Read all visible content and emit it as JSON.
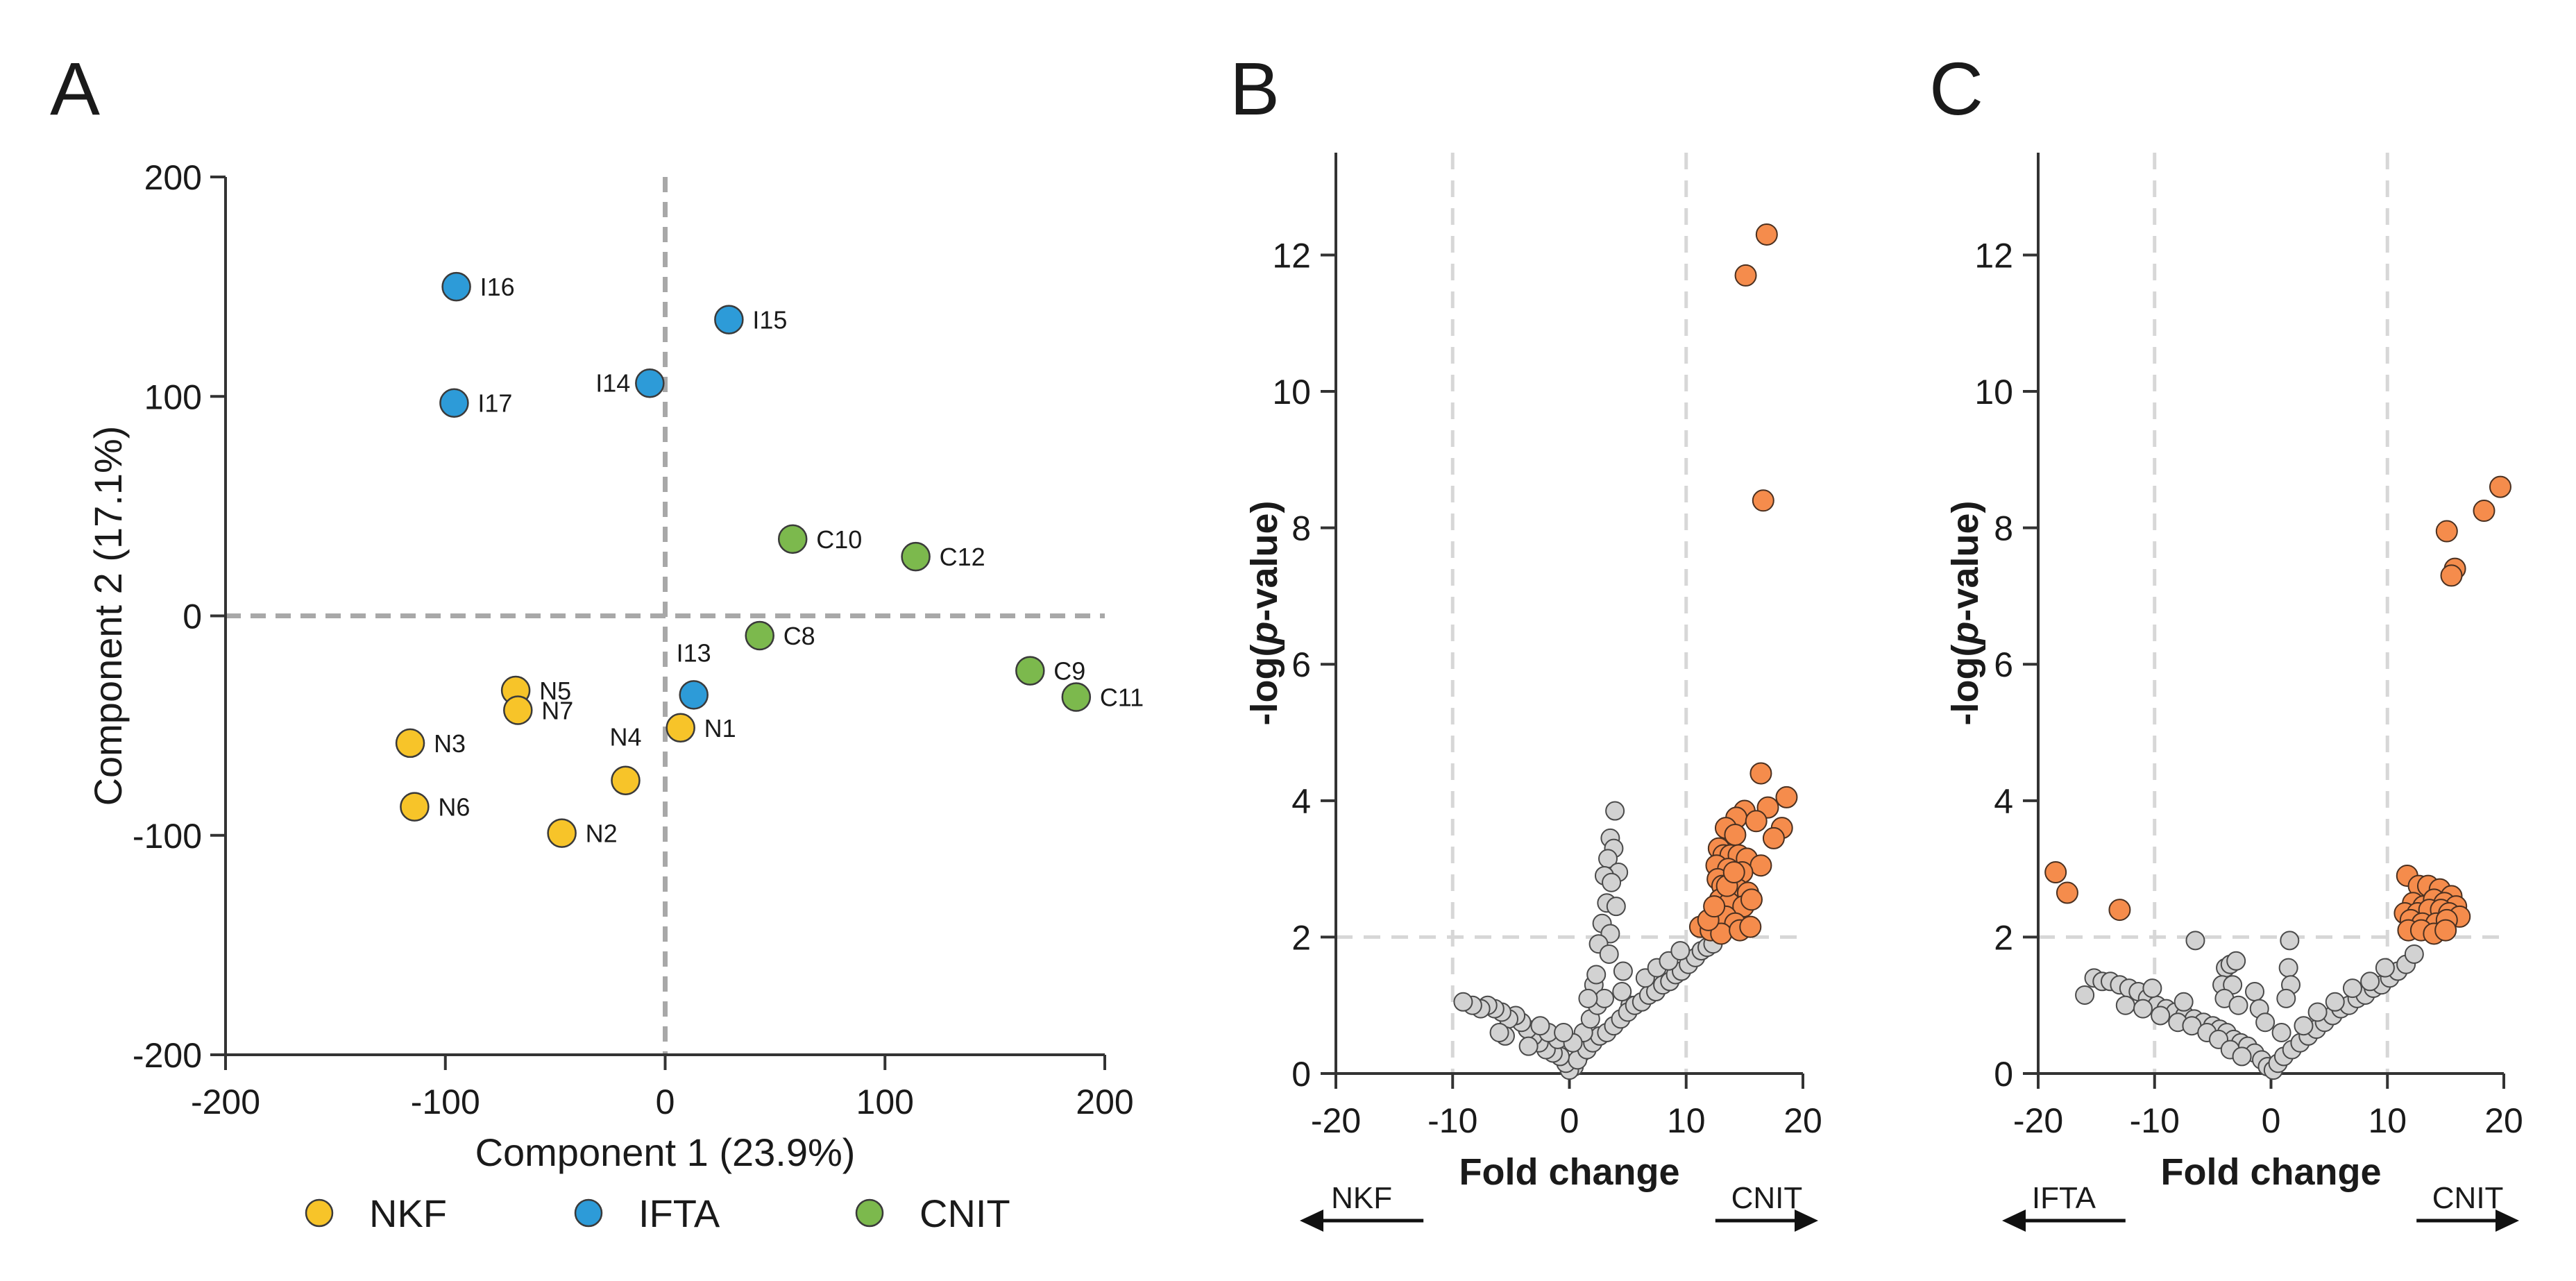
{
  "colors": {
    "NKF": "#F7C429",
    "IFTA": "#2D9BD8",
    "CNIT": "#7CB94D",
    "significant": "#F58C4C",
    "nonsignificant": "#D2D2D2",
    "reference_line": "#A8A8A8",
    "threshold_line": "#D7D7D7"
  },
  "legend": [
    {
      "label": "NKF",
      "group": "NKF"
    },
    {
      "label": "IFTA",
      "group": "IFTA"
    },
    {
      "label": "CNIT",
      "group": "CNIT"
    }
  ],
  "chart_data": [
    {
      "panel": "A",
      "type": "scatter",
      "xlabel": "Component 1 (23.9%)",
      "ylabel": "Component 2 (17.1%)",
      "xlim": [
        -200,
        200
      ],
      "ylim": [
        -200,
        200
      ],
      "xticks": [
        -200,
        -100,
        0,
        100,
        200
      ],
      "yticks": [
        -200,
        -100,
        0,
        100,
        200
      ],
      "reference_lines": {
        "x": 0,
        "y": 0
      },
      "points": [
        {
          "label": "I16",
          "group": "IFTA",
          "x": -95,
          "y": 150
        },
        {
          "label": "I15",
          "group": "IFTA",
          "x": 29,
          "y": 135
        },
        {
          "label": "I14",
          "group": "IFTA",
          "x": -7,
          "y": 106
        },
        {
          "label": "I17",
          "group": "IFTA",
          "x": -96,
          "y": 97
        },
        {
          "label": "I13",
          "group": "IFTA",
          "x": 13,
          "y": -36
        },
        {
          "label": "C10",
          "group": "CNIT",
          "x": 58,
          "y": 35
        },
        {
          "label": "C12",
          "group": "CNIT",
          "x": 114,
          "y": 27
        },
        {
          "label": "C8",
          "group": "CNIT",
          "x": 43,
          "y": -9
        },
        {
          "label": "C9",
          "group": "CNIT",
          "x": 166,
          "y": -25
        },
        {
          "label": "C11",
          "group": "CNIT",
          "x": 187,
          "y": -37
        },
        {
          "label": "N5",
          "group": "NKF",
          "x": -68,
          "y": -34
        },
        {
          "label": "N7",
          "group": "NKF",
          "x": -67,
          "y": -43
        },
        {
          "label": "N1",
          "group": "NKF",
          "x": 7,
          "y": -51
        },
        {
          "label": "N3",
          "group": "NKF",
          "x": -116,
          "y": -58
        },
        {
          "label": "N4",
          "group": "NKF",
          "x": -18,
          "y": -75
        },
        {
          "label": "N6",
          "group": "NKF",
          "x": -114,
          "y": -87
        },
        {
          "label": "N2",
          "group": "NKF",
          "x": -47,
          "y": -99
        }
      ]
    },
    {
      "panel": "B",
      "type": "scatter",
      "subtype": "volcano",
      "xlabel": "Fold change",
      "ylabel_prefix": "-log(",
      "ylabel_italic": "p",
      "ylabel_suffix": "-value)",
      "xlim": [
        -20,
        20
      ],
      "ylim": [
        0,
        13.5
      ],
      "xticks": [
        -20,
        -10,
        0,
        10,
        20
      ],
      "yticks": [
        0,
        2,
        4,
        6,
        8,
        10,
        12
      ],
      "thresholds": {
        "x": [
          -10,
          10
        ],
        "y": 2
      },
      "left_direction": "NKF",
      "right_direction": "CNIT",
      "significant_points": [
        [
          16.9,
          12.3
        ],
        [
          15.1,
          11.7
        ],
        [
          16.6,
          8.4
        ],
        [
          16.4,
          4.4
        ],
        [
          18.6,
          4.05
        ],
        [
          17.0,
          3.9
        ],
        [
          15.0,
          3.85
        ],
        [
          14.3,
          3.75
        ],
        [
          16.0,
          3.7
        ],
        [
          18.2,
          3.6
        ],
        [
          13.4,
          3.6
        ],
        [
          17.5,
          3.45
        ],
        [
          14.2,
          3.5
        ],
        [
          12.8,
          3.3
        ],
        [
          13.2,
          3.2
        ],
        [
          13.8,
          3.2
        ],
        [
          14.5,
          3.2
        ],
        [
          15.2,
          3.15
        ],
        [
          16.4,
          3.05
        ],
        [
          12.6,
          3.05
        ],
        [
          13.6,
          3.0
        ],
        [
          14.8,
          2.95
        ],
        [
          12.7,
          2.85
        ],
        [
          13.1,
          2.75
        ],
        [
          14.4,
          2.7
        ],
        [
          15.3,
          2.65
        ],
        [
          12.9,
          2.55
        ],
        [
          13.7,
          2.5
        ],
        [
          14.9,
          2.45
        ],
        [
          12.7,
          2.35
        ],
        [
          13.4,
          2.3
        ],
        [
          14.2,
          2.2
        ],
        [
          11.2,
          2.15
        ],
        [
          12.1,
          2.1
        ],
        [
          13.0,
          2.05
        ],
        [
          14.6,
          2.1
        ],
        [
          15.5,
          2.15
        ],
        [
          11.9,
          2.25
        ],
        [
          12.4,
          2.45
        ],
        [
          13.5,
          2.75
        ],
        [
          14.1,
          2.95
        ],
        [
          15.6,
          2.55
        ]
      ],
      "nonsignificant_points": [
        [
          3.9,
          3.85
        ],
        [
          3.5,
          3.45
        ],
        [
          3.8,
          3.3
        ],
        [
          3.3,
          3.15
        ],
        [
          4.2,
          2.95
        ],
        [
          3.0,
          2.9
        ],
        [
          3.6,
          2.8
        ],
        [
          3.2,
          2.5
        ],
        [
          4.0,
          2.45
        ],
        [
          2.8,
          2.2
        ],
        [
          3.5,
          2.05
        ],
        [
          2.5,
          1.9
        ],
        [
          3.4,
          1.75
        ],
        [
          4.6,
          1.5
        ],
        [
          2.1,
          1.3
        ],
        [
          5.2,
          1.0
        ],
        [
          1.0,
          0.3
        ],
        [
          0.4,
          0.1
        ],
        [
          0.0,
          0.05
        ],
        [
          -0.3,
          0.15
        ],
        [
          0.7,
          0.2
        ],
        [
          -0.8,
          0.25
        ],
        [
          1.5,
          0.35
        ],
        [
          -1.4,
          0.3
        ],
        [
          2.0,
          0.45
        ],
        [
          -2.0,
          0.35
        ],
        [
          2.6,
          0.55
        ],
        [
          -2.6,
          0.45
        ],
        [
          3.2,
          0.6
        ],
        [
          -3.1,
          0.55
        ],
        [
          3.8,
          0.7
        ],
        [
          -3.6,
          0.65
        ],
        [
          4.4,
          0.8
        ],
        [
          -4.1,
          0.75
        ],
        [
          5.0,
          0.9
        ],
        [
          -4.6,
          0.85
        ],
        [
          5.6,
          1.0
        ],
        [
          -5.2,
          0.8
        ],
        [
          6.2,
          1.05
        ],
        [
          -5.8,
          0.9
        ],
        [
          6.8,
          1.15
        ],
        [
          -6.4,
          0.95
        ],
        [
          7.4,
          1.2
        ],
        [
          -7.0,
          1.0
        ],
        [
          8.0,
          1.3
        ],
        [
          -7.6,
          0.95
        ],
        [
          8.6,
          1.35
        ],
        [
          -8.3,
          1.0
        ],
        [
          9.1,
          1.45
        ],
        [
          -9.1,
          1.05
        ],
        [
          9.6,
          1.5
        ],
        [
          10.2,
          1.6
        ],
        [
          10.8,
          1.7
        ],
        [
          11.3,
          1.8
        ],
        [
          11.8,
          1.85
        ],
        [
          12.3,
          1.9
        ],
        [
          1.2,
          0.6
        ],
        [
          1.8,
          0.8
        ],
        [
          2.4,
          1.0
        ],
        [
          3.0,
          1.1
        ],
        [
          6.5,
          1.4
        ],
        [
          7.5,
          1.55
        ],
        [
          8.5,
          1.65
        ],
        [
          9.5,
          1.8
        ],
        [
          4.5,
          1.2
        ],
        [
          -1.0,
          0.5
        ],
        [
          -1.8,
          0.6
        ],
        [
          -2.5,
          0.7
        ],
        [
          -5.5,
          0.55
        ],
        [
          -6.0,
          0.6
        ],
        [
          -3.5,
          0.4
        ],
        [
          0.3,
          0.45
        ],
        [
          1.6,
          1.1
        ],
        [
          2.3,
          1.45
        ],
        [
          -0.5,
          0.6
        ]
      ]
    },
    {
      "panel": "C",
      "type": "scatter",
      "subtype": "volcano",
      "xlabel": "Fold change",
      "ylabel_prefix": "-log(",
      "ylabel_italic": "p",
      "ylabel_suffix": "-value)",
      "xlim": [
        -20,
        20
      ],
      "ylim": [
        0,
        13.5
      ],
      "xticks": [
        -20,
        -10,
        0,
        10,
        20
      ],
      "yticks": [
        0,
        2,
        4,
        6,
        8,
        10,
        12
      ],
      "thresholds": {
        "x": [
          -10,
          10
        ],
        "y": 2
      },
      "left_direction": "IFTA",
      "right_direction": "CNIT",
      "significant_points": [
        [
          19.7,
          8.6
        ],
        [
          18.3,
          8.25
        ],
        [
          15.1,
          7.95
        ],
        [
          15.8,
          7.4
        ],
        [
          15.5,
          7.3
        ],
        [
          -18.5,
          2.95
        ],
        [
          -17.5,
          2.65
        ],
        [
          -13.0,
          2.4
        ],
        [
          11.7,
          2.9
        ],
        [
          12.7,
          2.75
        ],
        [
          13.5,
          2.75
        ],
        [
          14.5,
          2.7
        ],
        [
          15.5,
          2.6
        ],
        [
          12.2,
          2.5
        ],
        [
          13.1,
          2.45
        ],
        [
          14.0,
          2.55
        ],
        [
          14.9,
          2.5
        ],
        [
          15.9,
          2.45
        ],
        [
          11.5,
          2.35
        ],
        [
          12.6,
          2.35
        ],
        [
          13.6,
          2.4
        ],
        [
          14.6,
          2.4
        ],
        [
          15.3,
          2.35
        ],
        [
          16.2,
          2.3
        ],
        [
          12.0,
          2.25
        ],
        [
          13.0,
          2.2
        ],
        [
          14.2,
          2.2
        ],
        [
          15.1,
          2.25
        ],
        [
          11.8,
          2.1
        ],
        [
          12.9,
          2.1
        ],
        [
          14.0,
          2.05
        ],
        [
          15.0,
          2.1
        ]
      ],
      "nonsignificant_points": [
        [
          -6.5,
          1.95
        ],
        [
          -3.9,
          1.55
        ],
        [
          -3.5,
          1.6
        ],
        [
          -3.0,
          1.65
        ],
        [
          -4.2,
          1.3
        ],
        [
          -3.3,
          1.3
        ],
        [
          -4.0,
          1.1
        ],
        [
          -2.8,
          1.0
        ],
        [
          1.6,
          1.95
        ],
        [
          1.5,
          1.55
        ],
        [
          1.7,
          1.3
        ],
        [
          1.3,
          1.1
        ],
        [
          -1.4,
          1.2
        ],
        [
          -1.0,
          0.95
        ],
        [
          -15.2,
          1.4
        ],
        [
          -14.5,
          1.35
        ],
        [
          -13.8,
          1.35
        ],
        [
          -13.0,
          1.3
        ],
        [
          -12.2,
          1.25
        ],
        [
          -11.4,
          1.2
        ],
        [
          -10.6,
          1.1
        ],
        [
          -9.8,
          1.0
        ],
        [
          -9.0,
          0.95
        ],
        [
          -8.2,
          0.9
        ],
        [
          -7.4,
          0.85
        ],
        [
          -6.6,
          0.8
        ],
        [
          -5.8,
          0.75
        ],
        [
          -5.0,
          0.7
        ],
        [
          -4.4,
          0.65
        ],
        [
          -3.8,
          0.6
        ],
        [
          -3.2,
          0.5
        ],
        [
          -2.6,
          0.45
        ],
        [
          -2.0,
          0.4
        ],
        [
          -1.4,
          0.3
        ],
        [
          -0.8,
          0.2
        ],
        [
          -0.3,
          0.1
        ],
        [
          0.2,
          0.05
        ],
        [
          0.6,
          0.15
        ],
        [
          1.1,
          0.25
        ],
        [
          1.8,
          0.35
        ],
        [
          2.5,
          0.45
        ],
        [
          3.2,
          0.55
        ],
        [
          3.9,
          0.65
        ],
        [
          4.6,
          0.75
        ],
        [
          5.3,
          0.85
        ],
        [
          6.0,
          0.95
        ],
        [
          6.7,
          1.0
        ],
        [
          7.4,
          1.1
        ],
        [
          8.1,
          1.15
        ],
        [
          8.8,
          1.25
        ],
        [
          9.5,
          1.3
        ],
        [
          10.2,
          1.4
        ],
        [
          10.9,
          1.5
        ],
        [
          11.6,
          1.6
        ],
        [
          12.3,
          1.75
        ],
        [
          -16.0,
          1.15
        ],
        [
          -12.5,
          1.0
        ],
        [
          -11.0,
          0.95
        ],
        [
          -9.5,
          0.85
        ],
        [
          -8.0,
          0.75
        ],
        [
          -6.8,
          0.7
        ],
        [
          -5.5,
          0.6
        ],
        [
          -4.5,
          0.5
        ],
        [
          -3.5,
          0.35
        ],
        [
          -2.5,
          0.25
        ],
        [
          2.8,
          0.7
        ],
        [
          4.0,
          0.9
        ],
        [
          5.5,
          1.05
        ],
        [
          7.0,
          1.25
        ],
        [
          8.5,
          1.35
        ],
        [
          9.8,
          1.55
        ],
        [
          0.9,
          0.6
        ],
        [
          -0.5,
          0.75
        ],
        [
          -7.5,
          1.05
        ],
        [
          -10.2,
          1.25
        ]
      ]
    }
  ]
}
